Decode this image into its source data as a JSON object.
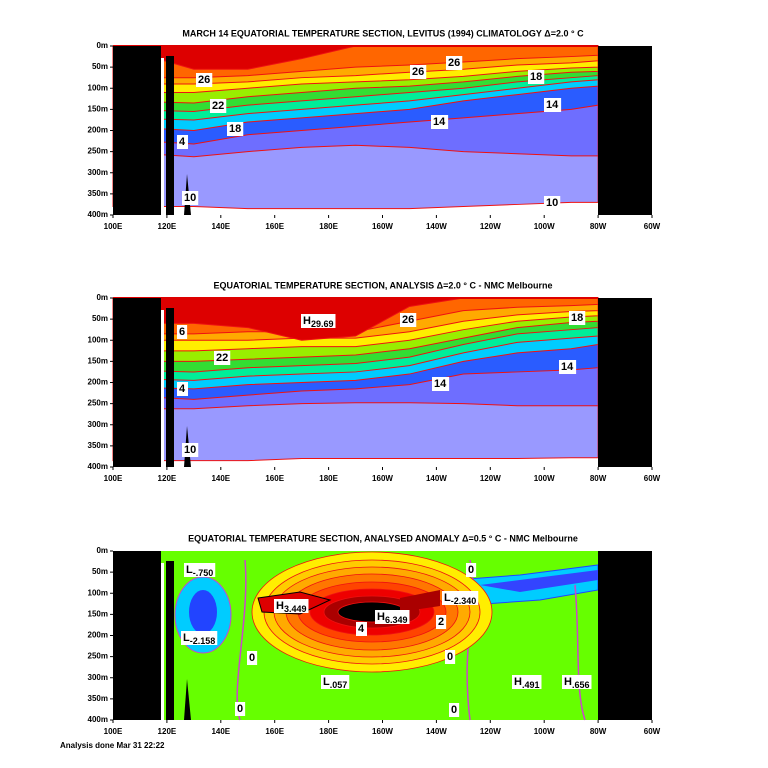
{
  "chart_data": [
    {
      "type": "contour",
      "title": "MARCH 14 EQUATORIAL TEMPERATURE SECTION, LEVITUS (1994) CLIMATOLOGY  Δ=2.0 ° C",
      "xlim": [
        100,
        300
      ],
      "xticks": [
        {
          "value": 100,
          "label": "100E"
        },
        {
          "value": 120,
          "label": "120E"
        },
        {
          "value": 140,
          "label": "140E"
        },
        {
          "value": 160,
          "label": "160E"
        },
        {
          "value": 180,
          "label": "180E"
        },
        {
          "value": 200,
          "label": "160W"
        },
        {
          "value": 220,
          "label": "140W"
        },
        {
          "value": 240,
          "label": "120W"
        },
        {
          "value": 260,
          "label": "100W"
        },
        {
          "value": 280,
          "label": "80W"
        },
        {
          "value": 300,
          "label": "60W"
        }
      ],
      "ylim": [
        400,
        0
      ],
      "yticks": [
        {
          "value": 0,
          "label": "0m"
        },
        {
          "value": 50,
          "label": "50m"
        },
        {
          "value": 100,
          "label": "100m"
        },
        {
          "value": 150,
          "label": "150m"
        },
        {
          "value": 200,
          "label": "200m"
        },
        {
          "value": 250,
          "label": "250m"
        },
        {
          "value": 300,
          "label": "300m"
        },
        {
          "value": 350,
          "label": "350m"
        },
        {
          "value": 400,
          "label": "400m"
        }
      ],
      "annotations": [
        {
          "text": "26"
        },
        {
          "text": "26"
        },
        {
          "text": "26"
        },
        {
          "text": "22"
        },
        {
          "text": "18"
        },
        {
          "text": "18"
        },
        {
          "text": "14"
        },
        {
          "text": "14"
        },
        {
          "text": "4"
        },
        {
          "text": "10"
        },
        {
          "text": "10"
        }
      ]
    },
    {
      "type": "contour",
      "title": "EQUATORIAL TEMPERATURE SECTION, ANALYSIS   Δ=2.0 ° C   -   NMC Melbourne",
      "xlim": [
        100,
        300
      ],
      "xticks": [
        {
          "value": 100,
          "label": "100E"
        },
        {
          "value": 120,
          "label": "120E"
        },
        {
          "value": 140,
          "label": "140E"
        },
        {
          "value": 160,
          "label": "160E"
        },
        {
          "value": 180,
          "label": "180E"
        },
        {
          "value": 200,
          "label": "160W"
        },
        {
          "value": 220,
          "label": "140W"
        },
        {
          "value": 240,
          "label": "120W"
        },
        {
          "value": 260,
          "label": "100W"
        },
        {
          "value": 280,
          "label": "80W"
        },
        {
          "value": 300,
          "label": "60W"
        }
      ],
      "ylim": [
        400,
        0
      ],
      "yticks": [
        {
          "value": 0,
          "label": "0m"
        },
        {
          "value": 50,
          "label": "50m"
        },
        {
          "value": 100,
          "label": "100m"
        },
        {
          "value": 150,
          "label": "150m"
        },
        {
          "value": 200,
          "label": "200m"
        },
        {
          "value": 250,
          "label": "250m"
        },
        {
          "value": 300,
          "label": "300m"
        },
        {
          "value": 350,
          "label": "350m"
        },
        {
          "value": 400,
          "label": "400m"
        }
      ],
      "annotations": [
        {
          "text": "H",
          "sub": "29.69"
        },
        {
          "text": "26"
        },
        {
          "text": "18"
        },
        {
          "text": "6"
        },
        {
          "text": "22"
        },
        {
          "text": "4"
        },
        {
          "text": "14"
        },
        {
          "text": "14"
        },
        {
          "text": "10"
        }
      ]
    },
    {
      "type": "contour",
      "title": "EQUATORIAL TEMPERATURE SECTION, ANALYSED ANOMALY   Δ=0.5 ° C   -   NMC Melbourne",
      "xlim": [
        100,
        300
      ],
      "xticks": [
        {
          "value": 100,
          "label": "100E"
        },
        {
          "value": 120,
          "label": "120E"
        },
        {
          "value": 140,
          "label": "140E"
        },
        {
          "value": 160,
          "label": "160E"
        },
        {
          "value": 180,
          "label": "180E"
        },
        {
          "value": 200,
          "label": "160W"
        },
        {
          "value": 220,
          "label": "140W"
        },
        {
          "value": 240,
          "label": "120W"
        },
        {
          "value": 260,
          "label": "100W"
        },
        {
          "value": 280,
          "label": "80W"
        },
        {
          "value": 300,
          "label": "60W"
        }
      ],
      "ylim": [
        400,
        0
      ],
      "yticks": [
        {
          "value": 0,
          "label": "0m"
        },
        {
          "value": 50,
          "label": "50m"
        },
        {
          "value": 100,
          "label": "100m"
        },
        {
          "value": 150,
          "label": "150m"
        },
        {
          "value": 200,
          "label": "200m"
        },
        {
          "value": 250,
          "label": "250m"
        },
        {
          "value": 300,
          "label": "300m"
        },
        {
          "value": 350,
          "label": "350m"
        },
        {
          "value": 400,
          "label": "400m"
        }
      ],
      "annotations": [
        {
          "text": "L",
          "sub": "-.750"
        },
        {
          "text": "0"
        },
        {
          "text": "H",
          "sub": "3.449"
        },
        {
          "text": "H",
          "sub": "6.349"
        },
        {
          "text": "L",
          "sub": "-2.340"
        },
        {
          "text": "4"
        },
        {
          "text": "2"
        },
        {
          "text": "L",
          "sub": "-2.158"
        },
        {
          "text": "0"
        },
        {
          "text": "0"
        },
        {
          "text": "L",
          "sub": ".057"
        },
        {
          "text": "H",
          "sub": ".491"
        },
        {
          "text": "H",
          "sub": ".656"
        },
        {
          "text": "0"
        },
        {
          "text": "0"
        }
      ]
    }
  ],
  "footer": "Analysis done Mar 31 22:22"
}
